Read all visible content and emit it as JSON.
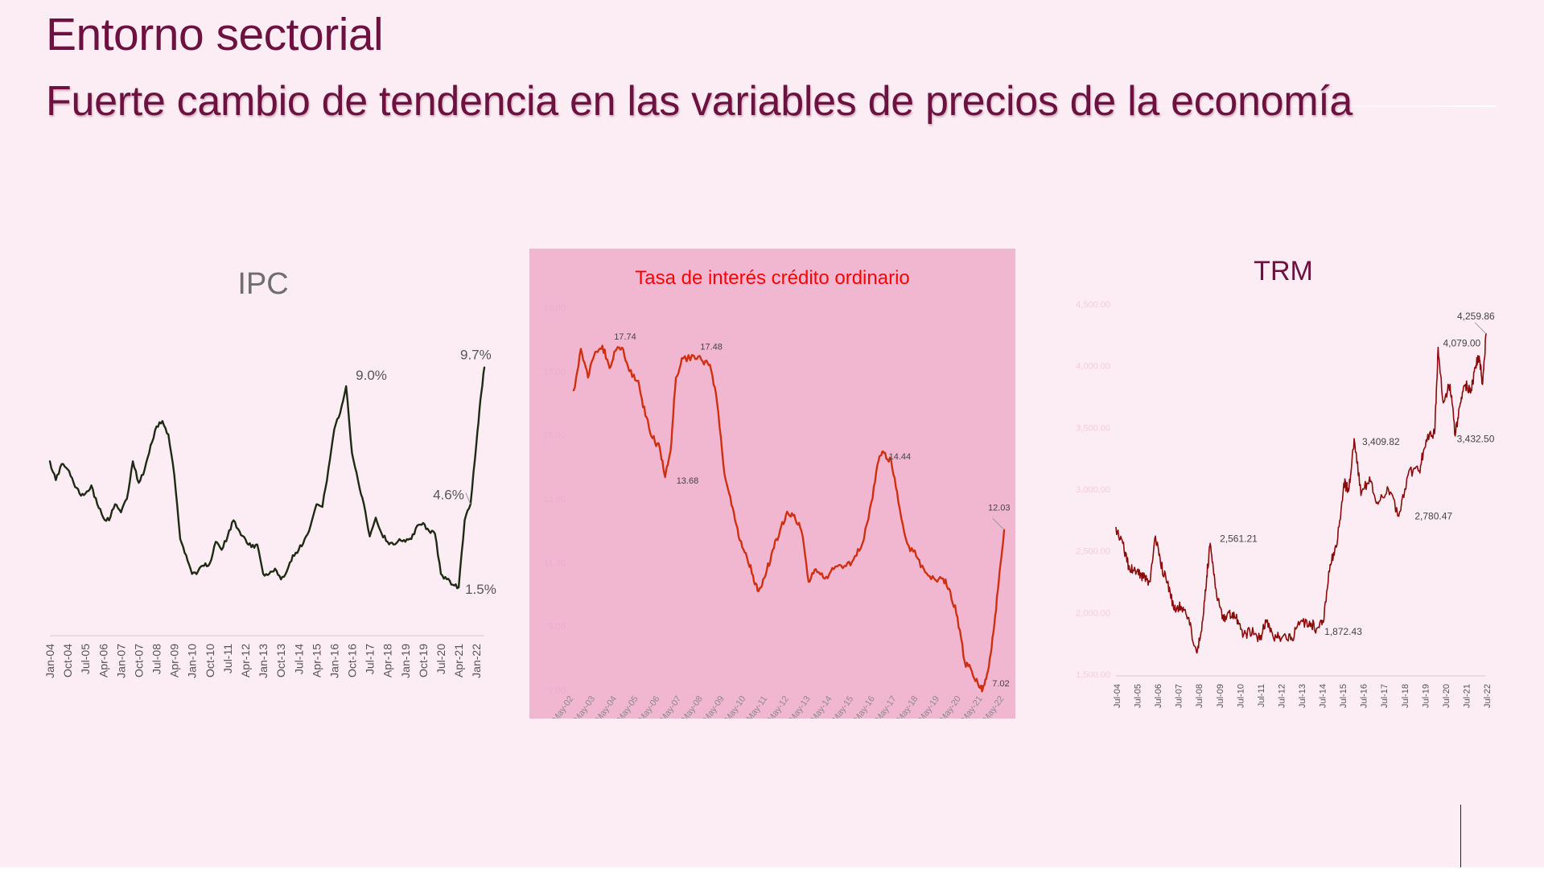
{
  "page": {
    "eyebrow": "Entorno sectorial",
    "headline": "Fuerte cambio de tendencia en las variables de precios de la economía"
  },
  "colors": {
    "background": "#fcecf3",
    "title": "#6d1240",
    "ipc_line": "#1f2a14",
    "tasa_panel": "#f1b7d1",
    "tasa_line": "#d03010",
    "tasa_title": "#ff0000",
    "trm_line": "#8b0a0a"
  },
  "chart_data": [
    {
      "id": "ipc",
      "type": "line",
      "title": "IPC",
      "x_start": "2004-01",
      "x_end": "2022-05",
      "x_ticks": [
        "Jan-04",
        "Oct-04",
        "Jul-05",
        "Apr-06",
        "Jan-07",
        "Oct-07",
        "Jul-08",
        "Apr-09",
        "Jan-10",
        "Oct-10",
        "Jul-11",
        "Apr-12",
        "Jan-13",
        "Oct-13",
        "Jul-14",
        "Apr-15",
        "Jan-16",
        "Oct-16",
        "Jul-17",
        "Apr-18",
        "Jan-19",
        "Oct-19",
        "Jul-20",
        "Apr-21",
        "Jan-22"
      ],
      "ylim": [
        0,
        12
      ],
      "grid": false,
      "series": [
        {
          "points": [
            [
              "2004-01",
              6.2
            ],
            [
              "2004-04",
              5.5
            ],
            [
              "2004-07",
              6.1
            ],
            [
              "2004-10",
              5.9
            ],
            [
              "2005-01",
              5.4
            ],
            [
              "2005-04",
              5.0
            ],
            [
              "2005-07",
              5.0
            ],
            [
              "2005-10",
              5.3
            ],
            [
              "2006-01",
              4.6
            ],
            [
              "2006-04",
              4.1
            ],
            [
              "2006-07",
              4.0
            ],
            [
              "2006-10",
              4.6
            ],
            [
              "2007-01",
              4.3
            ],
            [
              "2007-04",
              4.8
            ],
            [
              "2007-07",
              6.2
            ],
            [
              "2007-10",
              5.4
            ],
            [
              "2008-01",
              5.9
            ],
            [
              "2008-04",
              6.8
            ],
            [
              "2008-07",
              7.5
            ],
            [
              "2008-10",
              7.7
            ],
            [
              "2009-01",
              7.2
            ],
            [
              "2009-04",
              5.7
            ],
            [
              "2009-07",
              3.3
            ],
            [
              "2009-10",
              2.7
            ],
            [
              "2010-01",
              2.0
            ],
            [
              "2010-04",
              2.1
            ],
            [
              "2010-07",
              2.3
            ],
            [
              "2010-10",
              2.4
            ],
            [
              "2011-01",
              3.2
            ],
            [
              "2011-04",
              2.9
            ],
            [
              "2011-07",
              3.4
            ],
            [
              "2011-10",
              4.0
            ],
            [
              "2012-01",
              3.6
            ],
            [
              "2012-04",
              3.3
            ],
            [
              "2012-07",
              3.0
            ],
            [
              "2012-10",
              3.1
            ],
            [
              "2013-01",
              2.0
            ],
            [
              "2013-04",
              2.0
            ],
            [
              "2013-07",
              2.2
            ],
            [
              "2013-10",
              1.8
            ],
            [
              "2014-01",
              2.1
            ],
            [
              "2014-04",
              2.7
            ],
            [
              "2014-07",
              2.9
            ],
            [
              "2014-10",
              3.3
            ],
            [
              "2015-01",
              3.8
            ],
            [
              "2015-04",
              4.6
            ],
            [
              "2015-07",
              4.5
            ],
            [
              "2015-10",
              5.9
            ],
            [
              "2016-01",
              7.4
            ],
            [
              "2016-04",
              8.0
            ],
            [
              "2016-07",
              9.0
            ],
            [
              "2016-10",
              6.5
            ],
            [
              "2017-01",
              5.5
            ],
            [
              "2017-04",
              4.6
            ],
            [
              "2017-07",
              3.4
            ],
            [
              "2017-10",
              4.1
            ],
            [
              "2018-01",
              3.5
            ],
            [
              "2018-04",
              3.2
            ],
            [
              "2018-07",
              3.1
            ],
            [
              "2018-10",
              3.3
            ],
            [
              "2019-01",
              3.2
            ],
            [
              "2019-04",
              3.3
            ],
            [
              "2019-07",
              3.8
            ],
            [
              "2019-10",
              3.9
            ],
            [
              "2020-01",
              3.6
            ],
            [
              "2020-04",
              3.5
            ],
            [
              "2020-07",
              2.0
            ],
            [
              "2020-10",
              1.8
            ],
            [
              "2021-01",
              1.6
            ],
            [
              "2021-04",
              1.5
            ],
            [
              "2021-07",
              4.0
            ],
            [
              "2021-10",
              4.6
            ],
            [
              "2022-01",
              6.9
            ],
            [
              "2022-03",
              8.5
            ],
            [
              "2022-05",
              9.7
            ]
          ]
        }
      ],
      "annotations": [
        {
          "x": "2016-07",
          "y": 9.0,
          "text": "9.0%"
        },
        {
          "x": "2022-05",
          "y": 9.7,
          "text": "9.7%"
        },
        {
          "x": "2021-10",
          "y": 4.6,
          "text": "4.6%"
        },
        {
          "x": "2021-04",
          "y": 1.5,
          "text": "1.5%"
        }
      ]
    },
    {
      "id": "tasa",
      "type": "line",
      "title": "Tasa de interés crédito ordinario",
      "x_start": "2002-05",
      "x_end": "2022-05",
      "x_ticks": [
        "May-02",
        "May-03",
        "May-04",
        "May-05",
        "May-06",
        "May-07",
        "May-08",
        "May-09",
        "May-10",
        "May-11",
        "May-12",
        "May-13",
        "May-14",
        "May-15",
        "May-16",
        "May-17",
        "May-18",
        "May-19",
        "May-20",
        "May-21",
        "May-22"
      ],
      "y_ticks": [
        "7.00",
        "9.00",
        "11.00",
        "13.00",
        "15.00",
        "17.00",
        "19.00"
      ],
      "ylim": [
        7,
        19
      ],
      "grid": false,
      "series": [
        {
          "points": [
            [
              "2002-05",
              16.4
            ],
            [
              "2002-09",
              17.7
            ],
            [
              "2003-01",
              16.8
            ],
            [
              "2003-05",
              17.6
            ],
            [
              "2003-09",
              17.8
            ],
            [
              "2004-01",
              17.1
            ],
            [
              "2004-05",
              17.7
            ],
            [
              "2004-08",
              17.74
            ],
            [
              "2004-12",
              17.0
            ],
            [
              "2005-05",
              16.7
            ],
            [
              "2005-09",
              15.6
            ],
            [
              "2006-01",
              14.9
            ],
            [
              "2006-05",
              14.6
            ],
            [
              "2006-08",
              13.68
            ],
            [
              "2006-11",
              14.5
            ],
            [
              "2007-02",
              16.8
            ],
            [
              "2007-06",
              17.4
            ],
            [
              "2007-12",
              17.48
            ],
            [
              "2008-05",
              17.3
            ],
            [
              "2008-09",
              17.2
            ],
            [
              "2009-01",
              16.0
            ],
            [
              "2009-05",
              13.8
            ],
            [
              "2009-09",
              12.8
            ],
            [
              "2010-01",
              11.8
            ],
            [
              "2010-05",
              11.3
            ],
            [
              "2010-09",
              10.6
            ],
            [
              "2010-12",
              10.1
            ],
            [
              "2011-04",
              10.6
            ],
            [
              "2011-08",
              11.4
            ],
            [
              "2011-12",
              12.0
            ],
            [
              "2012-04",
              12.6
            ],
            [
              "2012-08",
              12.5
            ],
            [
              "2012-12",
              12.0
            ],
            [
              "2013-04",
              10.4
            ],
            [
              "2013-08",
              10.8
            ],
            [
              "2014-01",
              10.5
            ],
            [
              "2014-06",
              10.8
            ],
            [
              "2014-12",
              10.9
            ],
            [
              "2015-05",
              11.1
            ],
            [
              "2015-10",
              11.6
            ],
            [
              "2016-03",
              12.9
            ],
            [
              "2016-07",
              14.2
            ],
            [
              "2016-10",
              14.44
            ],
            [
              "2017-02",
              14.2
            ],
            [
              "2017-06",
              12.9
            ],
            [
              "2017-11",
              11.6
            ],
            [
              "2018-04",
              11.2
            ],
            [
              "2018-09",
              10.7
            ],
            [
              "2019-02",
              10.5
            ],
            [
              "2019-07",
              10.5
            ],
            [
              "2019-11",
              10.1
            ],
            [
              "2020-03",
              9.3
            ],
            [
              "2020-07",
              7.9
            ],
            [
              "2020-11",
              7.6
            ],
            [
              "2021-03",
              7.1
            ],
            [
              "2021-05",
              7.02
            ],
            [
              "2021-08",
              7.6
            ],
            [
              "2021-11",
              8.8
            ],
            [
              "2022-02",
              10.4
            ],
            [
              "2022-05",
              12.03
            ]
          ]
        }
      ],
      "annotations": [
        {
          "x": "2004-08",
          "y": 17.74,
          "text": "17.74"
        },
        {
          "x": "2007-12",
          "y": 17.48,
          "text": "17.48"
        },
        {
          "x": "2006-08",
          "y": 13.68,
          "text": "13.68"
        },
        {
          "x": "2016-10",
          "y": 14.44,
          "text": "14.44"
        },
        {
          "x": "2022-05",
          "y": 12.03,
          "text": "12.03"
        },
        {
          "x": "2021-05",
          "y": 7.02,
          "text": "7.02"
        }
      ]
    },
    {
      "id": "trm",
      "type": "line",
      "title": "TRM",
      "x_start": "2004-07",
      "x_end": "2022-07",
      "x_ticks": [
        "Jul-04",
        "Jul-05",
        "Jul-06",
        "Jul-07",
        "Jul-08",
        "Jul-09",
        "Jul-10",
        "Jul-11",
        "Jul-12",
        "Jul-13",
        "Jul-14",
        "Jul-15",
        "Jul-16",
        "Jul-17",
        "Jul-18",
        "Jul-19",
        "Jul-20",
        "Jul-21",
        "Jul-22"
      ],
      "y_ticks": [
        "1,500.00",
        "2,000.00",
        "2,500.00",
        "3,000.00",
        "3,500.00",
        "4,000.00",
        "4,500.00"
      ],
      "ylim": [
        1500,
        4500
      ],
      "grid": false,
      "series": [
        {
          "points": [
            [
              "2004-07",
              2690
            ],
            [
              "2004-11",
              2560
            ],
            [
              "2005-03",
              2350
            ],
            [
              "2005-07",
              2330
            ],
            [
              "2005-11",
              2280
            ],
            [
              "2006-03",
              2250
            ],
            [
              "2006-06",
              2620
            ],
            [
              "2006-09",
              2400
            ],
            [
              "2007-01",
              2240
            ],
            [
              "2007-05",
              2020
            ],
            [
              "2007-09",
              2050
            ],
            [
              "2008-01",
              1960
            ],
            [
              "2008-06",
              1680
            ],
            [
              "2008-09",
              1850
            ],
            [
              "2008-12",
              2300
            ],
            [
              "2009-02",
              2561.21
            ],
            [
              "2009-05",
              2200
            ],
            [
              "2009-09",
              1950
            ],
            [
              "2010-01",
              2000
            ],
            [
              "2010-05",
              1960
            ],
            [
              "2010-09",
              1800
            ],
            [
              "2011-01",
              1860
            ],
            [
              "2011-07",
              1780
            ],
            [
              "2011-11",
              1940
            ],
            [
              "2012-03",
              1790
            ],
            [
              "2012-08",
              1800
            ],
            [
              "2013-01",
              1780
            ],
            [
              "2013-06",
              1900
            ],
            [
              "2013-12",
              1930
            ],
            [
              "2014-04",
              1872.43
            ],
            [
              "2014-08",
              1920
            ],
            [
              "2014-12",
              2390
            ],
            [
              "2015-04",
              2550
            ],
            [
              "2015-08",
              3050
            ],
            [
              "2015-11",
              3000
            ],
            [
              "2016-02",
              3409.82
            ],
            [
              "2016-06",
              2950
            ],
            [
              "2016-11",
              3100
            ],
            [
              "2017-04",
              2880
            ],
            [
              "2017-10",
              3000
            ],
            [
              "2018-04",
              2780.47
            ],
            [
              "2018-10",
              3150
            ],
            [
              "2019-04",
              3150
            ],
            [
              "2019-08",
              3400
            ],
            [
              "2020-01",
              3450
            ],
            [
              "2020-03",
              4150
            ],
            [
              "2020-06",
              3700
            ],
            [
              "2020-10",
              3850
            ],
            [
              "2021-01",
              3432.5
            ],
            [
              "2021-04",
              3700
            ],
            [
              "2021-07",
              3850
            ],
            [
              "2021-10",
              3780
            ],
            [
              "2022-01",
              4000
            ],
            [
              "2022-03",
              4079.0
            ],
            [
              "2022-05",
              3850
            ],
            [
              "2022-07",
              4259.86
            ]
          ]
        }
      ],
      "annotations": [
        {
          "x": "2022-07",
          "y": 4259.86,
          "text": "4,259.86"
        },
        {
          "x": "2022-03",
          "y": 4079.0,
          "text": "4,079.00"
        },
        {
          "x": "2021-01",
          "y": 3432.5,
          "text": "3,432.50"
        },
        {
          "x": "2016-02",
          "y": 3409.82,
          "text": "3,409.82"
        },
        {
          "x": "2018-04",
          "y": 2780.47,
          "text": "2,780.47"
        },
        {
          "x": "2009-02",
          "y": 2561.21,
          "text": "2,561.21"
        },
        {
          "x": "2014-04",
          "y": 1872.43,
          "text": "1,872.43"
        }
      ]
    }
  ]
}
